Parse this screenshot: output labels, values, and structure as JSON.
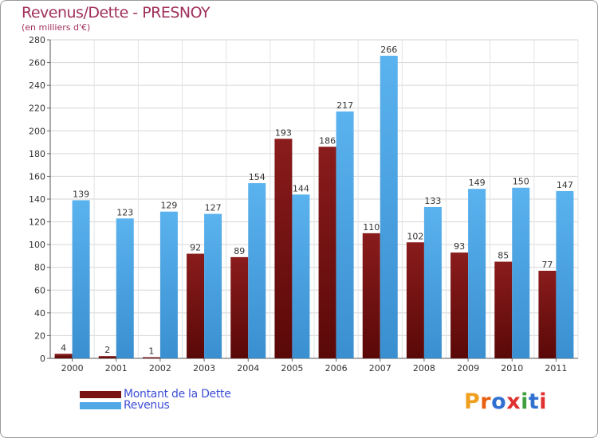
{
  "colors": {
    "dette": "#7a1515",
    "revenus": "#4fa7e6",
    "title": "#a0305c",
    "legend_text": "#3d4fd6"
  },
  "header": {
    "title": "Revenus/Dette - PRESNOY",
    "subtitle": "(en milliers d'€)"
  },
  "legend": {
    "dette_label": "Montant de la Dette",
    "revenus_label": "Revenus"
  },
  "logo": {
    "text": "Proxiti",
    "letter_colors": [
      "#f0a020",
      "#e86010",
      "#3070d0",
      "#e03030",
      "#40a040",
      "#3070d0",
      "#e03030"
    ]
  },
  "chart_data": {
    "type": "bar",
    "title": "Revenus/Dette - PRESNOY",
    "ylabel": "(en milliers d'€)",
    "xlabel": "",
    "ylim": [
      0,
      280
    ],
    "ytick_step": 20,
    "grid": true,
    "legend_position": "bottom-left",
    "categories": [
      "2000",
      "2001",
      "2002",
      "2003",
      "2004",
      "2005",
      "2006",
      "2007",
      "2008",
      "2009",
      "2010",
      "2011"
    ],
    "series": [
      {
        "name": "Montant de la Dette",
        "values": [
          4,
          2,
          1,
          92,
          89,
          193,
          186,
          110,
          102,
          93,
          85,
          77
        ]
      },
      {
        "name": "Revenus",
        "values": [
          139,
          123,
          129,
          127,
          154,
          144,
          217,
          266,
          133,
          149,
          150,
          147
        ]
      }
    ]
  }
}
